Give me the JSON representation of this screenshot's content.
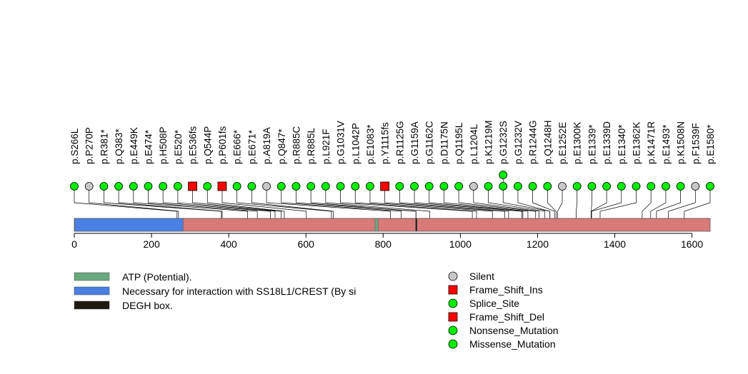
{
  "chart_data": {
    "type": "lollipop",
    "title": "",
    "xlabel": "",
    "ylabel": "",
    "protein_length": 1647,
    "xlim": [
      0,
      1647
    ],
    "ticks": [
      0,
      200,
      400,
      600,
      800,
      1000,
      1200,
      1400,
      1600
    ],
    "domains": [
      {
        "name": "ATP (Potential).",
        "start": 779,
        "end": 787,
        "color": "#6aa87e"
      },
      {
        "name": "Necessary for interaction with SS18L1/CREST (By si",
        "start": 1,
        "end": 282,
        "color": "#4a7fe3"
      },
      {
        "name": "DEGH box.",
        "start": 884,
        "end": 887,
        "color": "#1e1a12"
      }
    ],
    "mutations": [
      {
        "label": "p.S266L",
        "pos": 266,
        "type": "Missense_Mutation",
        "count": 1
      },
      {
        "label": "p.P270P",
        "pos": 270,
        "type": "Silent",
        "count": 1
      },
      {
        "label": "p.R381*",
        "pos": 381,
        "type": "Nonsense_Mutation",
        "count": 1
      },
      {
        "label": "p.Q383*",
        "pos": 383,
        "type": "Nonsense_Mutation",
        "count": 1
      },
      {
        "label": "p.E449K",
        "pos": 449,
        "type": "Missense_Mutation",
        "count": 1
      },
      {
        "label": "p.E474*",
        "pos": 474,
        "type": "Nonsense_Mutation",
        "count": 1
      },
      {
        "label": "p.H508P",
        "pos": 508,
        "type": "Missense_Mutation",
        "count": 1
      },
      {
        "label": "p.E520*",
        "pos": 520,
        "type": "Nonsense_Mutation",
        "count": 1
      },
      {
        "label": "p.E536fs",
        "pos": 536,
        "type": "Frame_Shift_Ins",
        "count": 1
      },
      {
        "label": "p.Q544P",
        "pos": 544,
        "type": "Missense_Mutation",
        "count": 1
      },
      {
        "label": "p.P601fs",
        "pos": 601,
        "type": "Frame_Shift_Del",
        "count": 1
      },
      {
        "label": "p.E666*",
        "pos": 666,
        "type": "Nonsense_Mutation",
        "count": 1
      },
      {
        "label": "p.E671*",
        "pos": 671,
        "type": "Nonsense_Mutation",
        "count": 1
      },
      {
        "label": "p.A819A",
        "pos": 819,
        "type": "Silent",
        "count": 1
      },
      {
        "label": "p.Q847*",
        "pos": 847,
        "type": "Nonsense_Mutation",
        "count": 1
      },
      {
        "label": "p.R885C",
        "pos": 885,
        "type": "Missense_Mutation",
        "count": 1
      },
      {
        "label": "p.R885L",
        "pos": 885,
        "type": "Missense_Mutation",
        "count": 1
      },
      {
        "label": "p.L921F",
        "pos": 921,
        "type": "Missense_Mutation",
        "count": 1
      },
      {
        "label": "p.G1031V",
        "pos": 1031,
        "type": "Missense_Mutation",
        "count": 1
      },
      {
        "label": "p.L1042P",
        "pos": 1042,
        "type": "Missense_Mutation",
        "count": 1
      },
      {
        "label": "p.E1083*",
        "pos": 1083,
        "type": "Nonsense_Mutation",
        "count": 1
      },
      {
        "label": "p.Y1115fs",
        "pos": 1115,
        "type": "Frame_Shift_Del",
        "count": 1
      },
      {
        "label": "p.R1125G",
        "pos": 1125,
        "type": "Missense_Mutation",
        "count": 1
      },
      {
        "label": "p.G1159A",
        "pos": 1159,
        "type": "Missense_Mutation",
        "count": 1
      },
      {
        "label": "p.G1162C",
        "pos": 1162,
        "type": "Missense_Mutation",
        "count": 1
      },
      {
        "label": "p.D1175N",
        "pos": 1175,
        "type": "Missense_Mutation",
        "count": 1
      },
      {
        "label": "p.Q1195L",
        "pos": 1195,
        "type": "Missense_Mutation",
        "count": 1
      },
      {
        "label": "p.L1204L",
        "pos": 1204,
        "type": "Silent",
        "count": 1
      },
      {
        "label": "p.K1219M",
        "pos": 1219,
        "type": "Missense_Mutation",
        "count": 1
      },
      {
        "label": "p.G1232S",
        "pos": 1232,
        "type": "Missense_Mutation",
        "count": 2
      },
      {
        "label": "p.G1232V",
        "pos": 1232,
        "type": "Missense_Mutation",
        "count": 1
      },
      {
        "label": "p.R1244G",
        "pos": 1244,
        "type": "Missense_Mutation",
        "count": 1
      },
      {
        "label": "p.Q1248H",
        "pos": 1248,
        "type": "Missense_Mutation",
        "count": 1
      },
      {
        "label": "p.E1252E",
        "pos": 1252,
        "type": "Silent",
        "count": 1
      },
      {
        "label": "p.E1300K",
        "pos": 1300,
        "type": "Missense_Mutation",
        "count": 1
      },
      {
        "label": "p.E1339*",
        "pos": 1339,
        "type": "Nonsense_Mutation",
        "count": 1
      },
      {
        "label": "p.E1339D",
        "pos": 1339,
        "type": "Missense_Mutation",
        "count": 1
      },
      {
        "label": "p.E1340*",
        "pos": 1340,
        "type": "Nonsense_Mutation",
        "count": 1
      },
      {
        "label": "p.E1362K",
        "pos": 1362,
        "type": "Missense_Mutation",
        "count": 1
      },
      {
        "label": "p.K1471R",
        "pos": 1471,
        "type": "Missense_Mutation",
        "count": 1
      },
      {
        "label": "p.E1493*",
        "pos": 1493,
        "type": "Nonsense_Mutation",
        "count": 1
      },
      {
        "label": "p.K1508N",
        "pos": 1508,
        "type": "Missense_Mutation",
        "count": 1
      },
      {
        "label": "p.F1539F",
        "pos": 1539,
        "type": "Silent",
        "count": 1
      },
      {
        "label": "p.E1580*",
        "pos": 1580,
        "type": "Nonsense_Mutation",
        "count": 1
      }
    ],
    "mutation_types": [
      {
        "name": "Silent",
        "shape": "circle",
        "color": "#c8c8c8"
      },
      {
        "name": "Frame_Shift_Ins",
        "shape": "square",
        "color": "#ff0000"
      },
      {
        "name": "Splice_Site",
        "shape": "circle",
        "color": "#00ee00"
      },
      {
        "name": "Frame_Shift_Del",
        "shape": "square",
        "color": "#ff0000"
      },
      {
        "name": "Nonsense_Mutation",
        "shape": "circle",
        "color": "#00ee00"
      },
      {
        "name": "Missense_Mutation",
        "shape": "circle",
        "color": "#00ee00"
      }
    ],
    "protein_color": "#d87a78",
    "legend_position": "bottom"
  }
}
